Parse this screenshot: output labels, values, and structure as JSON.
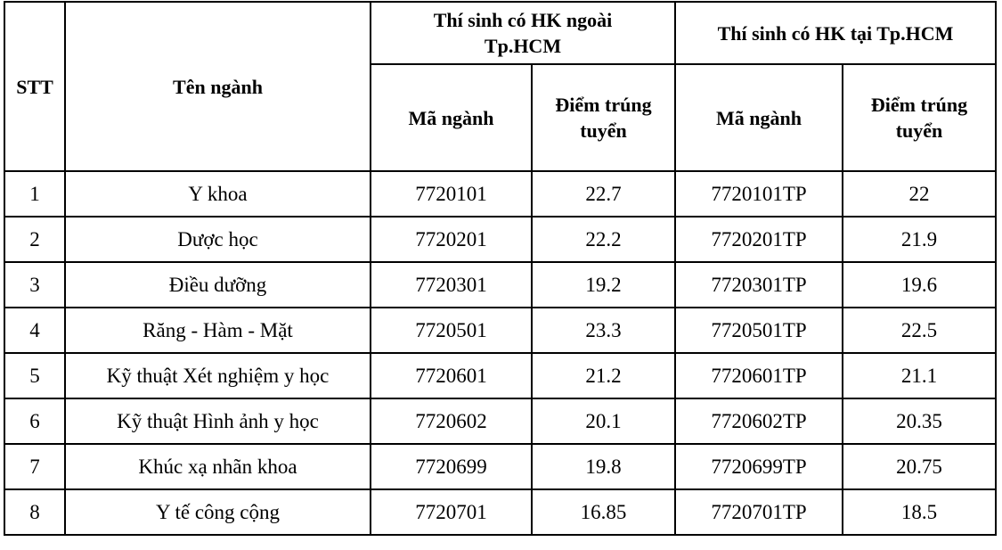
{
  "headers": {
    "stt": "STT",
    "name": "Tên ngành",
    "group_outside": "Thí sinh có HK ngoài Tp.HCM",
    "group_inside": "Thí sinh có HK tại Tp.HCM",
    "code": "Mã ngành",
    "score": "Điểm trúng tuyển"
  },
  "rows": [
    {
      "stt": "1",
      "name": "Y khoa",
      "code_out": "7720101",
      "score_out": "22.7",
      "code_in": "7720101TP",
      "score_in": "22"
    },
    {
      "stt": "2",
      "name": "Dược học",
      "code_out": "7720201",
      "score_out": "22.2",
      "code_in": "7720201TP",
      "score_in": "21.9"
    },
    {
      "stt": "3",
      "name": "Điều dưỡng",
      "code_out": "7720301",
      "score_out": "19.2",
      "code_in": "7720301TP",
      "score_in": "19.6"
    },
    {
      "stt": "4",
      "name": "Răng - Hàm - Mặt",
      "code_out": "7720501",
      "score_out": "23.3",
      "code_in": "7720501TP",
      "score_in": "22.5"
    },
    {
      "stt": "5",
      "name": "Kỹ thuật Xét nghiệm y học",
      "code_out": "7720601",
      "score_out": "21.2",
      "code_in": "7720601TP",
      "score_in": "21.1"
    },
    {
      "stt": "6",
      "name": "Kỹ thuật Hình ảnh y học",
      "code_out": "7720602",
      "score_out": "20.1",
      "code_in": "7720602TP",
      "score_in": "20.35"
    },
    {
      "stt": "7",
      "name": "Khúc xạ nhãn khoa",
      "code_out": "7720699",
      "score_out": "19.8",
      "code_in": "7720699TP",
      "score_in": "20.75"
    },
    {
      "stt": "8",
      "name": "Y tế công cộng",
      "code_out": "7720701",
      "score_out": "16.85",
      "code_in": "7720701TP",
      "score_in": "18.5"
    }
  ]
}
